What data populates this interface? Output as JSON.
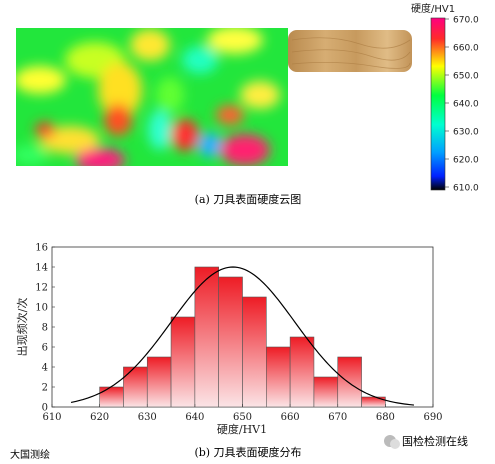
{
  "colormap_panel": {
    "caption": "(a) 刀具表面硬度云图",
    "colorbar_title": "硬度/HV1",
    "colorbar_ticks": [
      "670.0",
      "660.0",
      "650.0",
      "640.0",
      "630.0",
      "620.0",
      "610.0"
    ],
    "colors": {
      "low": "#000000",
      "blue": "#0050ff",
      "cyan": "#00e0ff",
      "green": "#00ff40",
      "yellow": "#ffff00",
      "red": "#ff2a2a",
      "high": "#ff0080"
    }
  },
  "chart_data": {
    "type": "bar",
    "title": "(b) 刀具表面硬度分布",
    "xlabel": "硬度/HV1",
    "ylabel": "出现频次/次",
    "xlim": [
      610,
      690
    ],
    "ylim": [
      0,
      16
    ],
    "xticks": [
      610,
      620,
      630,
      640,
      650,
      660,
      670,
      680,
      690
    ],
    "yticks": [
      0,
      2,
      4,
      6,
      8,
      10,
      12,
      14,
      16
    ],
    "bin_width": 5,
    "bin_starts": [
      620,
      625,
      630,
      635,
      640,
      645,
      650,
      655,
      660,
      665,
      670,
      675
    ],
    "values": [
      2,
      4,
      5,
      9,
      14,
      13,
      11,
      6,
      7,
      3,
      5,
      1
    ],
    "fit_curve": {
      "type": "normal",
      "mean": 648,
      "peak": 14,
      "sigma": 13
    },
    "grid": false,
    "bar_color": "#ee1c25",
    "curve_color": "#000000"
  },
  "watermarks": {
    "left": "大国测绘",
    "right": "国检检测在线"
  }
}
